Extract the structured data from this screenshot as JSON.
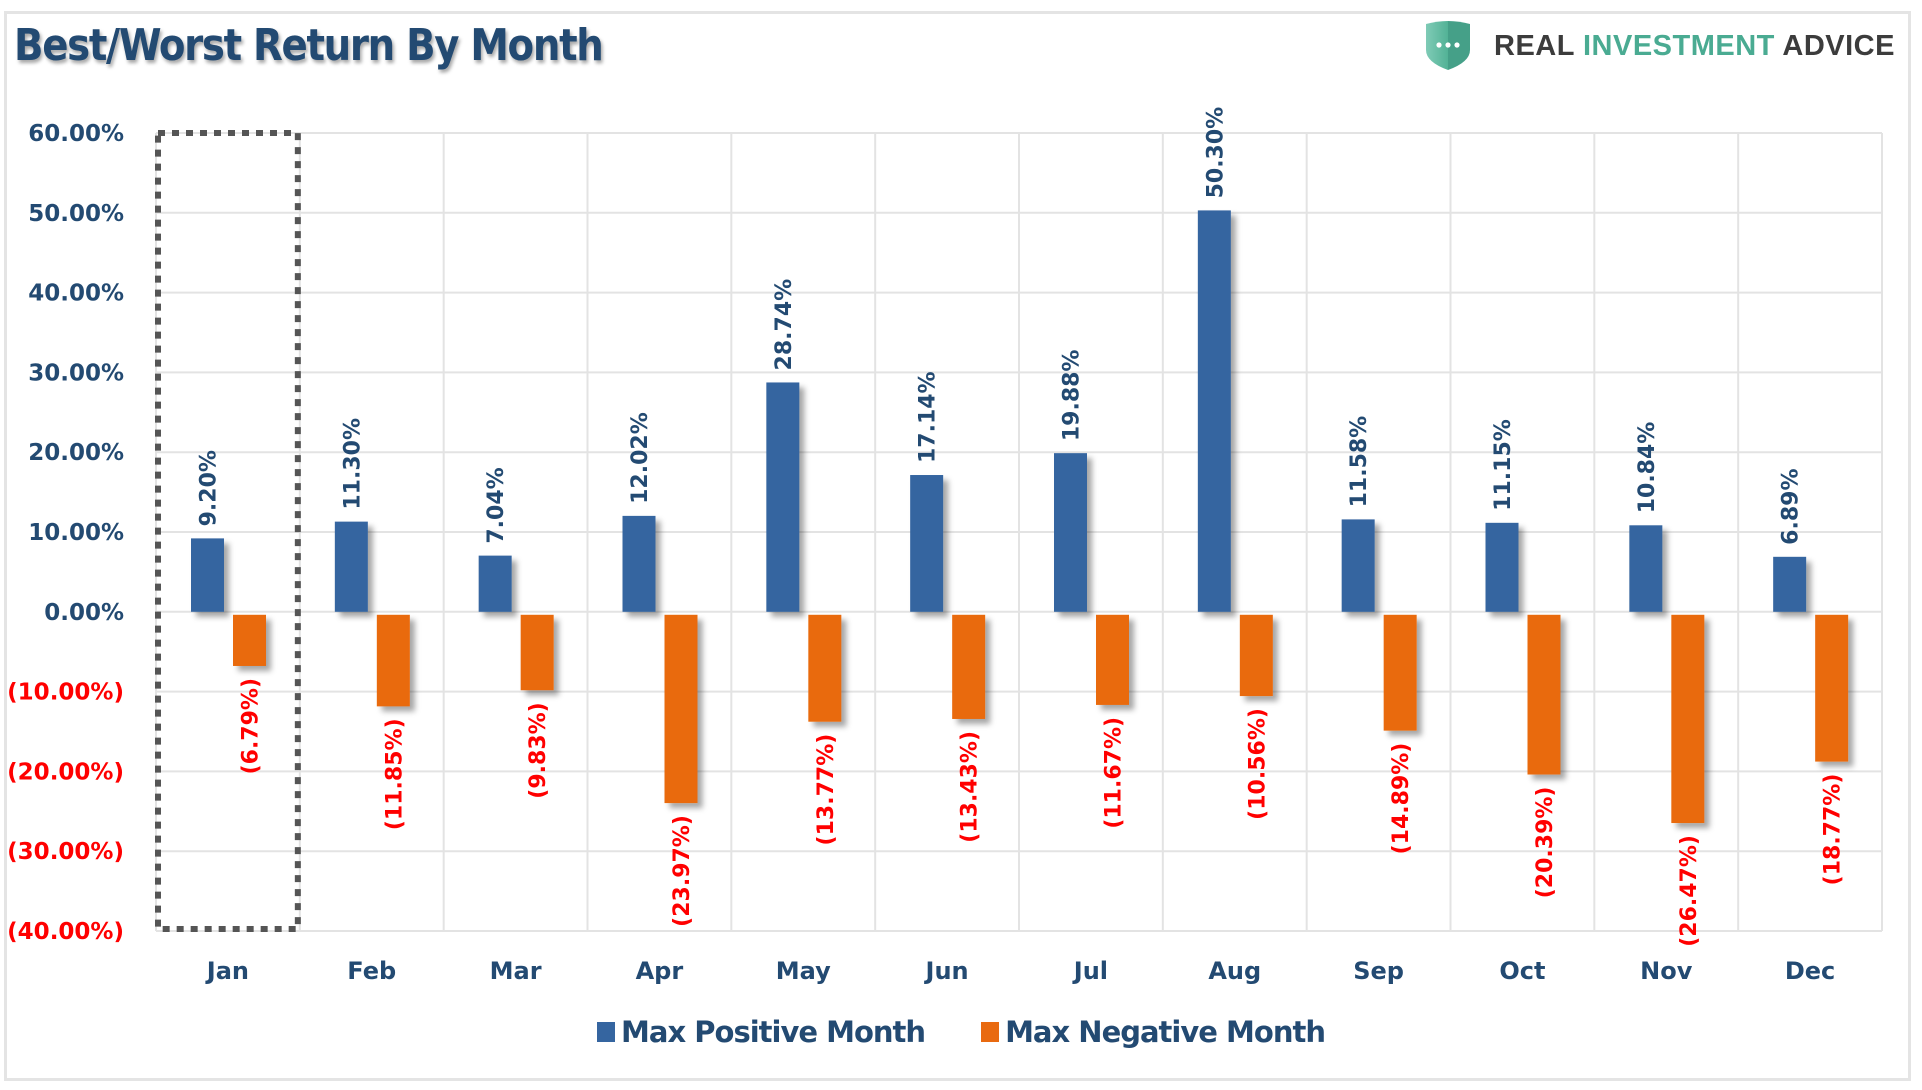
{
  "header": {
    "title": "Best/Worst Return By Month",
    "logo": {
      "icon": "shield-dots-icon",
      "word1": "REAL",
      "word2": "INVESTMENT",
      "word3": "ADVICE"
    }
  },
  "colors": {
    "positive": "#3565a0",
    "negative": "#e96a10",
    "axis_text": "#234a72",
    "negative_text": "#ff0000",
    "grid": "#e3e3e3",
    "highlight_box": "#555555",
    "logo_accent": "#4aab92"
  },
  "legend": [
    {
      "label": "Max Positive Month",
      "color": "#3565a0"
    },
    {
      "label": "Max Negative Month",
      "color": "#e96a10"
    }
  ],
  "chart_data": {
    "type": "bar",
    "title": "Best/Worst Return By Month",
    "xlabel": "",
    "ylabel": "",
    "categories": [
      "Jan",
      "Feb",
      "Mar",
      "Apr",
      "May",
      "Jun",
      "Jul",
      "Aug",
      "Sep",
      "Oct",
      "Nov",
      "Dec"
    ],
    "series": [
      {
        "name": "Max Positive Month",
        "values": [
          9.2,
          11.3,
          7.04,
          12.02,
          28.74,
          17.14,
          19.88,
          50.3,
          11.58,
          11.15,
          10.84,
          6.89
        ],
        "labels": [
          "9.20%",
          "11.30%",
          "7.04%",
          "12.02%",
          "28.74%",
          "17.14%",
          "19.88%",
          "50.30%",
          "11.58%",
          "11.15%",
          "10.84%",
          "6.89%"
        ]
      },
      {
        "name": "Max Negative Month",
        "values": [
          -6.79,
          -11.85,
          -9.83,
          -23.97,
          -13.77,
          -13.43,
          -11.67,
          -10.56,
          -14.89,
          -20.39,
          -26.47,
          -18.77
        ],
        "labels": [
          "(6.79%)",
          "(11.85%)",
          "(9.83%)",
          "(23.97%)",
          "(13.77%)",
          "(13.43%)",
          "(11.67%)",
          "(10.56%)",
          "(14.89%)",
          "(20.39%)",
          "(26.47%)",
          "(18.77%)"
        ]
      }
    ],
    "ylim": [
      -40,
      60
    ],
    "yticks": [
      60,
      50,
      40,
      30,
      20,
      10,
      0,
      -10,
      -20,
      -30,
      -40
    ],
    "ytick_labels": [
      "60.00%",
      "50.00%",
      "40.00%",
      "30.00%",
      "20.00%",
      "10.00%",
      "0.00%",
      "(10.00%)",
      "(20.00%)",
      "(30.00%)",
      "(40.00%)"
    ],
    "grid": true,
    "legend_position": "bottom",
    "annotations": [
      {
        "type": "dotted-highlight-box",
        "category": "Jan"
      }
    ]
  }
}
